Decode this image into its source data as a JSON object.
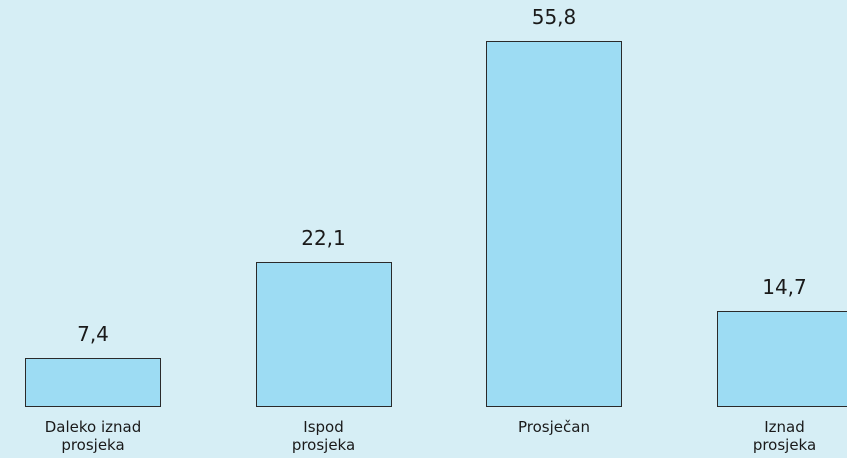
{
  "chart_data": {
    "type": "bar",
    "categories": [
      "Daleko iznad prosjeka",
      "Ispod prosjeka",
      "Prosječan",
      "Iznad prosjeka"
    ],
    "values": [
      7.4,
      22.1,
      55.8,
      14.7
    ],
    "value_labels": [
      "7,4",
      "22,1",
      "55,8",
      "14,7"
    ],
    "color": "#9ddcf3"
  }
}
